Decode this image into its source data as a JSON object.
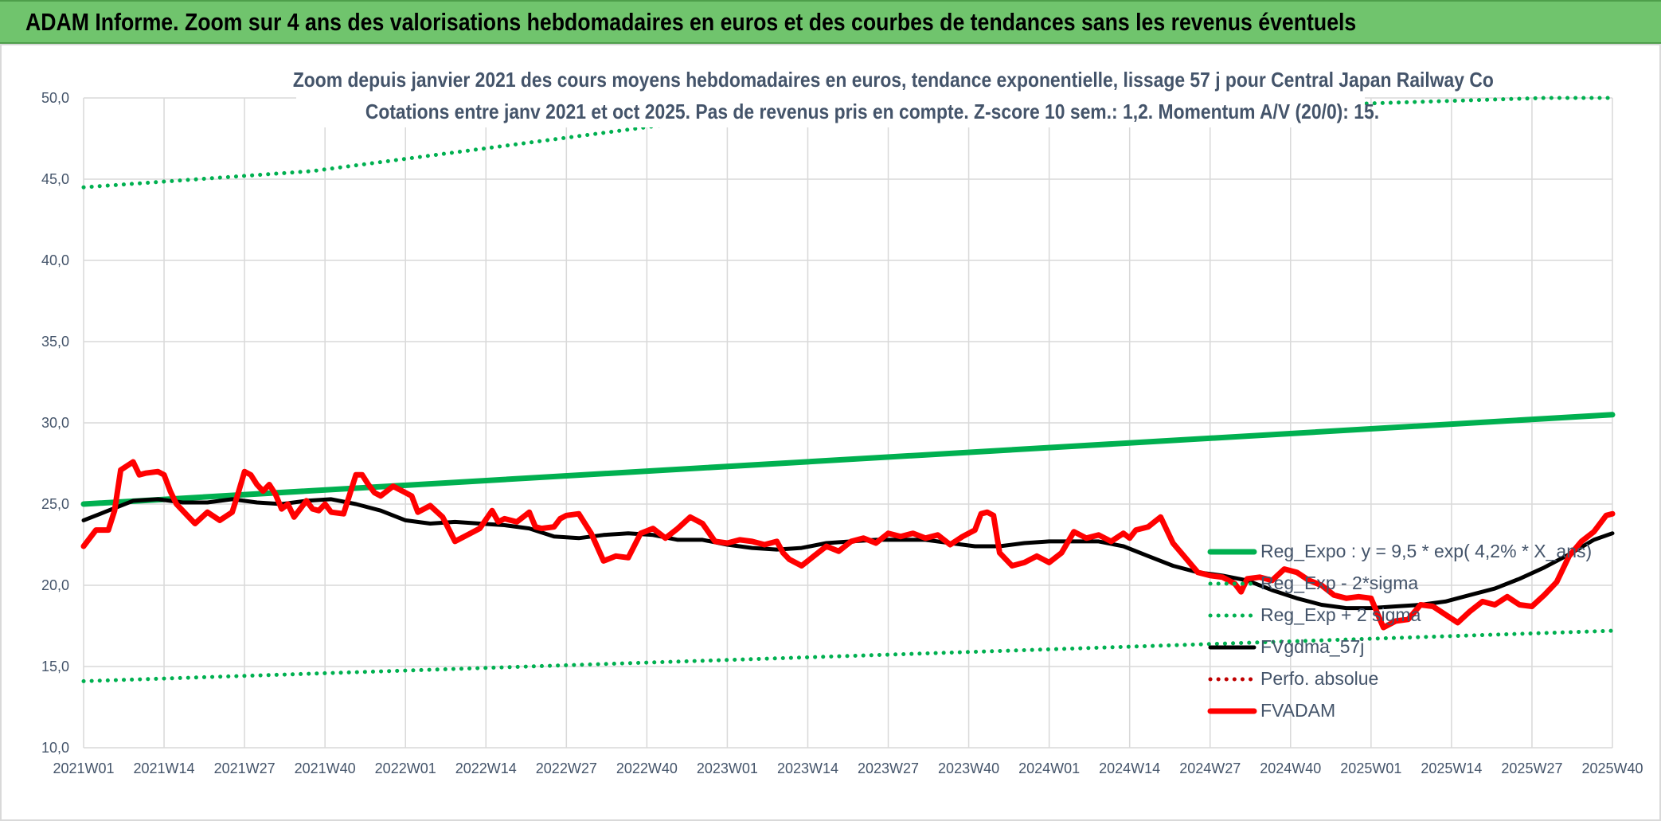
{
  "banner": {
    "title": "ADAM Informe. Zoom sur 4 ans des valorisations hebdomadaires en euros et des courbes de tendances sans les revenus éventuels"
  },
  "colors": {
    "banner": "#70c46d",
    "reg_expo": "#00b050",
    "fvgdma": "#000000",
    "fvadam": "#ff0000",
    "perfo": "#c00000",
    "text": "#44546a",
    "grid": "#d9d9d9"
  },
  "chart_data": {
    "type": "line",
    "title": "Zoom depuis janvier 2021 des cours moyens hebdomadaires en euros, tendance exponentielle, lissage 57 j pour Central Japan Railway Co",
    "subtitle": "Cotations entre janv 2021 et oct 2025. Pas de revenus pris en compte. Z-score 10 sem.: 1,2. Momentum A/V (20/0): 15.",
    "ylim": [
      10,
      50
    ],
    "y_ticks": [
      "10,0",
      "15,0",
      "20,0",
      "25,0",
      "30,0",
      "35,0",
      "40,0",
      "45,0",
      "50,0"
    ],
    "x_ticks": [
      "2021W01",
      "2021W14",
      "2021W27",
      "2021W40",
      "2022W01",
      "2022W14",
      "2022W27",
      "2022W40",
      "2023W01",
      "2023W14",
      "2023W27",
      "2023W40",
      "2024W01",
      "2024W14",
      "2024W27",
      "2024W40",
      "2025W01",
      "2025W14",
      "2025W27",
      "2025W40"
    ],
    "x_range_weeks": [
      0,
      247
    ],
    "grid": true,
    "legend_position": "right",
    "legend": [
      {
        "name": "Reg_Expo : y = 9,5 * exp( 4,2% *  X_ans)",
        "style": "solid-thick",
        "color_key": "reg_expo"
      },
      {
        "name": "Reg_Exp - 2*sigma",
        "style": "dotted",
        "color_key": "reg_expo"
      },
      {
        "name": "Reg_Exp + 2 sigma",
        "style": "dotted",
        "color_key": "reg_expo"
      },
      {
        "name": "FVgdma_57j",
        "style": "solid",
        "color_key": "fvgdma"
      },
      {
        "name": "Perfo. absolue",
        "style": "dotted",
        "color_key": "perfo"
      },
      {
        "name": "FVADAM",
        "style": "solid-thick",
        "color_key": "fvadam"
      }
    ],
    "series": [
      {
        "name": "Reg_Expo : y = 9,5 * exp( 4,2% *  X_ans)",
        "x": [
          0,
          247
        ],
        "y": [
          25.0,
          30.5
        ]
      },
      {
        "name": "Reg_Exp - 2*sigma",
        "x": [
          0,
          247
        ],
        "y": [
          14.1,
          17.2
        ]
      },
      {
        "name": "Reg_Exp + 2 sigma",
        "x": [
          0,
          37,
          85,
          93,
          236,
          247
        ],
        "y": [
          44.5,
          45.5,
          47.9,
          48.3,
          50.0,
          50.0
        ]
      },
      {
        "name": "FVgdma_57j",
        "x": [
          0,
          4,
          8,
          12,
          16,
          20,
          24,
          28,
          32,
          36,
          40,
          44,
          48,
          52,
          56,
          60,
          64,
          68,
          72,
          76,
          80,
          84,
          88,
          92,
          96,
          100,
          104,
          108,
          112,
          116,
          120,
          124,
          128,
          132,
          136,
          140,
          144,
          148,
          152,
          156,
          160,
          164,
          168,
          172,
          176,
          180,
          184,
          188,
          192,
          196,
          200,
          204,
          208,
          212,
          216,
          220,
          224,
          228,
          232,
          236,
          240,
          244,
          247
        ],
        "y": [
          24.0,
          24.6,
          25.2,
          25.3,
          25.1,
          25.1,
          25.3,
          25.1,
          25.0,
          25.2,
          25.3,
          25.0,
          24.6,
          24.0,
          23.8,
          23.9,
          23.8,
          23.7,
          23.5,
          23.0,
          22.9,
          23.1,
          23.2,
          23.1,
          22.8,
          22.8,
          22.5,
          22.3,
          22.2,
          22.3,
          22.6,
          22.7,
          22.8,
          22.8,
          22.8,
          22.6,
          22.4,
          22.4,
          22.6,
          22.7,
          22.7,
          22.7,
          22.4,
          21.8,
          21.2,
          20.8,
          20.6,
          20.3,
          19.7,
          19.2,
          18.8,
          18.6,
          18.6,
          18.7,
          18.8,
          19.0,
          19.4,
          19.8,
          20.4,
          21.1,
          21.9,
          22.8,
          23.2
        ]
      },
      {
        "name": "FVADAM",
        "x": [
          0,
          2,
          4,
          5,
          6,
          8,
          9,
          10,
          12,
          13,
          14,
          15,
          16,
          17,
          18,
          20,
          22,
          24,
          25,
          26,
          27,
          28,
          29,
          30,
          31,
          32,
          33,
          34,
          36,
          37,
          38,
          39,
          40,
          42,
          44,
          45,
          46,
          47,
          48,
          50,
          52,
          53,
          54,
          56,
          58,
          60,
          62,
          64,
          66,
          67,
          68,
          70,
          72,
          73,
          74,
          76,
          77,
          78,
          80,
          82,
          84,
          86,
          88,
          90,
          92,
          94,
          96,
          98,
          100,
          102,
          104,
          106,
          108,
          110,
          112,
          113,
          114,
          116,
          118,
          120,
          122,
          124,
          126,
          128,
          130,
          132,
          134,
          136,
          138,
          140,
          142,
          144,
          145,
          146,
          147,
          148,
          150,
          152,
          154,
          156,
          158,
          160,
          162,
          164,
          166,
          168,
          169,
          170,
          172,
          173,
          174,
          176,
          178,
          180,
          182,
          184,
          186,
          187,
          188,
          190,
          192,
          194,
          196,
          198,
          200,
          202,
          204,
          206,
          208,
          209,
          210,
          212,
          214,
          216,
          218,
          220,
          222,
          224,
          226,
          228,
          230,
          232,
          234,
          236,
          238,
          240,
          242,
          244,
          246,
          247
        ],
        "y": [
          22.4,
          23.4,
          23.4,
          24.6,
          27.1,
          27.6,
          26.8,
          26.9,
          27.0,
          26.8,
          25.8,
          25.0,
          24.6,
          24.2,
          23.8,
          24.5,
          24.0,
          24.5,
          25.7,
          27.0,
          26.8,
          26.2,
          25.8,
          26.2,
          25.6,
          24.7,
          25.0,
          24.2,
          25.2,
          24.7,
          24.6,
          25.0,
          24.5,
          24.4,
          26.8,
          26.8,
          26.2,
          25.7,
          25.5,
          26.1,
          25.7,
          25.5,
          24.5,
          24.9,
          24.2,
          22.7,
          23.1,
          23.5,
          24.6,
          23.9,
          24.1,
          23.9,
          24.5,
          23.6,
          23.5,
          23.6,
          24.1,
          24.3,
          24.4,
          23.2,
          21.5,
          21.8,
          21.7,
          23.2,
          23.5,
          22.9,
          23.5,
          24.2,
          23.8,
          22.7,
          22.6,
          22.8,
          22.7,
          22.5,
          22.7,
          22.0,
          21.6,
          21.2,
          21.8,
          22.4,
          22.1,
          22.7,
          22.9,
          22.6,
          23.2,
          23.0,
          23.2,
          22.9,
          23.1,
          22.5,
          23.0,
          23.4,
          24.4,
          24.5,
          24.3,
          22.0,
          21.2,
          21.4,
          21.8,
          21.4,
          22.0,
          23.3,
          22.9,
          23.1,
          22.7,
          23.2,
          22.9,
          23.4,
          23.6,
          23.9,
          24.2,
          22.6,
          21.7,
          20.8,
          20.6,
          20.5,
          20.1,
          19.6,
          20.4,
          20.5,
          20.3,
          21.0,
          20.8,
          20.3,
          20.0,
          19.4,
          19.2,
          19.3,
          19.2,
          18.3,
          17.4,
          17.8,
          17.9,
          18.8,
          18.7,
          18.2,
          17.7,
          18.4,
          19.0,
          18.8,
          19.3,
          18.8,
          18.7,
          19.4,
          20.2,
          21.8,
          22.7,
          23.3,
          24.3,
          24.4
        ]
      }
    ]
  }
}
